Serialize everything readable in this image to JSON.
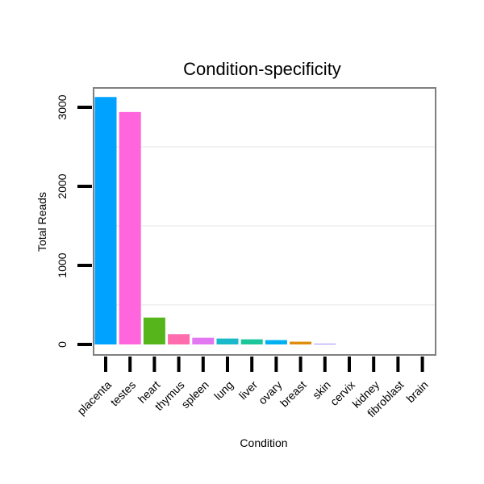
{
  "chart_data": {
    "type": "bar",
    "title": "Condition-specificity",
    "xlabel": "Condition",
    "ylabel": "Total Reads",
    "categories": [
      "placenta",
      "testes",
      "heart",
      "thymus",
      "spleen",
      "lung",
      "liver",
      "ovary",
      "breast",
      "skin",
      "cervix",
      "kidney",
      "fibroblast",
      "brain"
    ],
    "values": [
      3130,
      2940,
      340,
      130,
      85,
      75,
      65,
      55,
      35,
      10,
      0,
      0,
      0,
      0
    ],
    "colors": [
      "#00a2ff",
      "#ff66dd",
      "#55b51b",
      "#ff6cad",
      "#e377f2",
      "#19b9c9",
      "#1cc69b",
      "#00b0f0",
      "#e08c0e",
      "#9a90ff",
      "#888888",
      "#888888",
      "#888888",
      "#888888"
    ],
    "ylim": [
      0,
      3200
    ],
    "yticks": [
      0,
      1000,
      2000,
      3000
    ],
    "grid": true,
    "legend": "none"
  }
}
